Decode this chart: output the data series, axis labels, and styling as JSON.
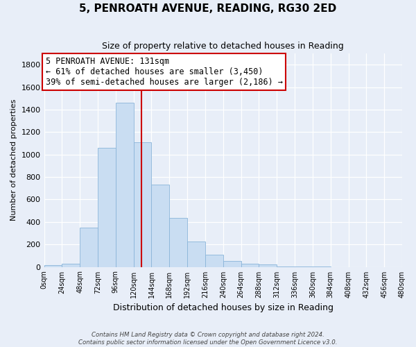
{
  "title": "5, PENROATH AVENUE, READING, RG30 2ED",
  "subtitle": "Size of property relative to detached houses in Reading",
  "xlabel": "Distribution of detached houses by size in Reading",
  "ylabel": "Number of detached properties",
  "bar_color": "#c9ddf2",
  "bar_edge_color": "#8ab4d9",
  "bin_edges": [
    0,
    24,
    48,
    72,
    96,
    120,
    144,
    168,
    192,
    216,
    240,
    264,
    288,
    312,
    336,
    360,
    384,
    408,
    432,
    456,
    480
  ],
  "bar_heights": [
    15,
    30,
    350,
    1060,
    1460,
    1110,
    735,
    435,
    225,
    110,
    55,
    30,
    20,
    5,
    2,
    1,
    0,
    0,
    0,
    0
  ],
  "ylim": [
    0,
    1900
  ],
  "yticks": [
    0,
    200,
    400,
    600,
    800,
    1000,
    1200,
    1400,
    1600,
    1800
  ],
  "xtick_labels": [
    "0sqm",
    "24sqm",
    "48sqm",
    "72sqm",
    "96sqm",
    "120sqm",
    "144sqm",
    "168sqm",
    "192sqm",
    "216sqm",
    "240sqm",
    "264sqm",
    "288sqm",
    "312sqm",
    "336sqm",
    "360sqm",
    "384sqm",
    "408sqm",
    "432sqm",
    "456sqm",
    "480sqm"
  ],
  "vline_x": 131,
  "vline_color": "#cc0000",
  "annotation_title": "5 PENROATH AVENUE: 131sqm",
  "annotation_line1": "← 61% of detached houses are smaller (3,450)",
  "annotation_line2": "39% of semi-detached houses are larger (2,186) →",
  "annotation_box_color": "#ffffff",
  "annotation_box_edge": "#cc0000",
  "footer_line1": "Contains HM Land Registry data © Crown copyright and database right 2024.",
  "footer_line2": "Contains public sector information licensed under the Open Government Licence v3.0.",
  "bg_color": "#e8eef8",
  "plot_bg_color": "#e8eef8",
  "grid_color": "#ffffff"
}
